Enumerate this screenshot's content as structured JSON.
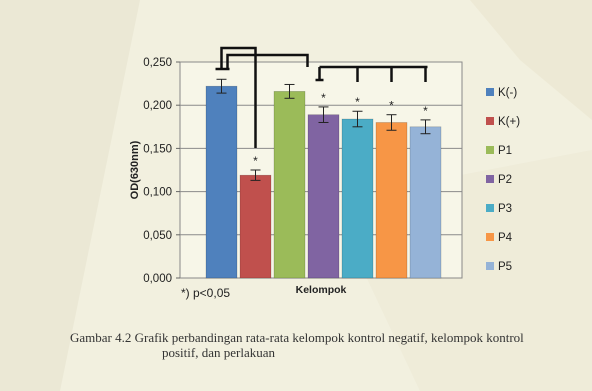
{
  "chart_data": {
    "type": "bar",
    "categories": [
      "K(-)",
      "K(+)",
      "P1",
      "P2",
      "P3",
      "P4",
      "P5"
    ],
    "values": [
      0.222,
      0.119,
      0.216,
      0.189,
      0.184,
      0.18,
      0.175
    ],
    "errors": [
      0.008,
      0.006,
      0.008,
      0.009,
      0.009,
      0.009,
      0.008
    ],
    "significant": [
      false,
      true,
      false,
      true,
      true,
      true,
      true
    ],
    "star_symbol": "*",
    "colors": [
      "#4f81bd",
      "#c0504d",
      "#9bbb59",
      "#8064a2",
      "#4bacc6",
      "#f79646",
      "#95b3d7"
    ],
    "ylabel": "OD(630nm)",
    "xlabel": "Kelompok",
    "ylim": [
      0,
      0.25
    ],
    "yticks": [
      "0,000",
      "0,050",
      "0,100",
      "0,150",
      "0,200",
      "0,250"
    ],
    "grid": true,
    "legend": {
      "position": "right",
      "entries": [
        "K(-)",
        "K(+)",
        "P1",
        "P2",
        "P3",
        "P4",
        "P5"
      ]
    },
    "footnote": "*) p<0,05"
  },
  "caption": {
    "line1": "Gambar 4.2 Grafik perbandingan rata-rata kelompok kontrol negatif, kelompok kontrol",
    "line2": "positif, dan perlakuan"
  }
}
